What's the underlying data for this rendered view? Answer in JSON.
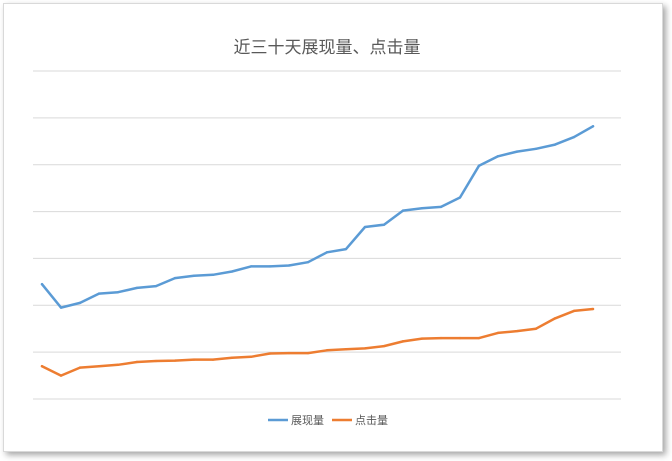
{
  "chart_data": {
    "type": "line",
    "title": "近三十天展现量、点击量",
    "xlabel": "",
    "ylabel": "",
    "grid": true,
    "legend_position": "bottom",
    "x": [
      1,
      2,
      3,
      4,
      5,
      6,
      7,
      8,
      9,
      10,
      11,
      12,
      13,
      14,
      15,
      16,
      17,
      18,
      19,
      20,
      21,
      22,
      23,
      24,
      25,
      26,
      27,
      28,
      29,
      30
    ],
    "ylim": [
      0,
      7
    ],
    "series": [
      {
        "name": "展现量",
        "color": "#5b9bd5",
        "values": [
          2.45,
          1.95,
          2.05,
          2.25,
          2.28,
          2.37,
          2.41,
          2.58,
          2.63,
          2.65,
          2.72,
          2.83,
          2.83,
          2.85,
          2.92,
          3.13,
          3.2,
          3.67,
          3.72,
          4.02,
          4.07,
          4.1,
          4.3,
          4.98,
          5.18,
          5.28,
          5.34,
          5.43,
          5.59,
          5.82
        ]
      },
      {
        "name": "点击量",
        "color": "#ed7d31",
        "values": [
          0.7,
          0.5,
          0.67,
          0.7,
          0.73,
          0.79,
          0.81,
          0.82,
          0.84,
          0.84,
          0.88,
          0.9,
          0.97,
          0.98,
          0.98,
          1.04,
          1.06,
          1.08,
          1.13,
          1.23,
          1.29,
          1.3,
          1.3,
          1.3,
          1.41,
          1.45,
          1.5,
          1.72,
          1.88,
          1.92
        ]
      }
    ]
  }
}
